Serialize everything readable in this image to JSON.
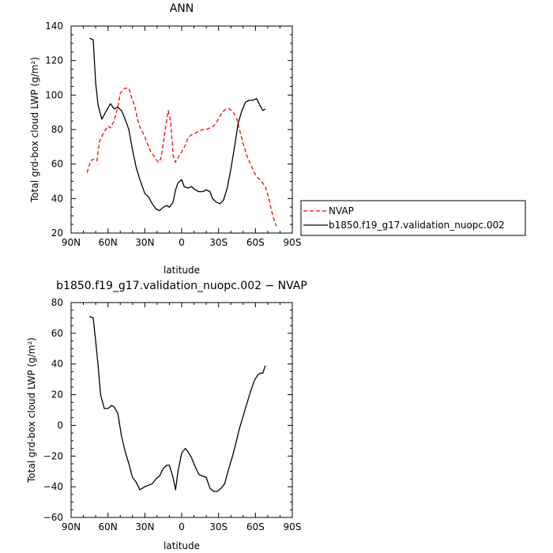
{
  "chart_data": [
    {
      "type": "line",
      "title": "ANN",
      "xlabel": "latitude",
      "ylabel": "Total grd-box cloud LWP (g/m²)",
      "xlim": [
        90,
        -90
      ],
      "ylim": [
        20,
        140
      ],
      "x_ticks": [
        90,
        60,
        30,
        0,
        -30,
        -60,
        -90
      ],
      "x_tick_labels": [
        "90N",
        "60N",
        "30N",
        "0",
        "30S",
        "60S",
        "90S"
      ],
      "y_ticks": [
        20,
        40,
        60,
        80,
        100,
        120,
        140
      ],
      "grid": false,
      "legend": "right-outside",
      "series": [
        {
          "name": "NVAP",
          "color": "#ff0000",
          "dash": true,
          "x": [
            77,
            74,
            71,
            69,
            67,
            65,
            62,
            60,
            58,
            55,
            52,
            50,
            48,
            46,
            43,
            41,
            38,
            35,
            33,
            30,
            28,
            25,
            22,
            19,
            17,
            15,
            13,
            11,
            9,
            7,
            5,
            2,
            0,
            -3,
            -5,
            -8,
            -11,
            -14,
            -17,
            -20,
            -23,
            -26,
            -29,
            -33,
            -36,
            -39,
            -42,
            -45,
            -47,
            -50,
            -53,
            -56,
            -59,
            -62,
            -65,
            -68,
            -71,
            -73,
            -75,
            -77
          ],
          "values": [
            55,
            62,
            63,
            62,
            73,
            76,
            80,
            82,
            81,
            85,
            93,
            101,
            103,
            104,
            104,
            99,
            93,
            83,
            80,
            76,
            72,
            67,
            64,
            61,
            63,
            72,
            82,
            91,
            85,
            65,
            61,
            65,
            67,
            71,
            75,
            77,
            78,
            79,
            80,
            80,
            81,
            82,
            85,
            90,
            92,
            92,
            90,
            86,
            80,
            72,
            65,
            60,
            55,
            52,
            50,
            47,
            40,
            33,
            28,
            24
          ]
        },
        {
          "name": "b1850.f19_g17.validation_nuopc.002",
          "color": "#000000",
          "dash": false,
          "x": [
            75,
            72,
            70,
            68,
            65,
            62,
            58,
            55,
            52,
            49,
            46,
            43,
            40,
            37,
            34,
            30,
            27,
            24,
            21,
            18,
            15,
            12,
            10,
            7,
            5,
            3,
            0,
            -2,
            -5,
            -8,
            -11,
            -14,
            -17,
            -20,
            -23,
            -25,
            -28,
            -31,
            -34,
            -37,
            -40,
            -43,
            -46,
            -49,
            -52,
            -55,
            -58,
            -61,
            -63,
            -66,
            -68
          ],
          "values": [
            133,
            132,
            107,
            94,
            86,
            90,
            95,
            92,
            93,
            91,
            86,
            80,
            68,
            58,
            51,
            43,
            41,
            37,
            34,
            33,
            35,
            36,
            35,
            38,
            45,
            49,
            51,
            47,
            46,
            47,
            45,
            44,
            44,
            45,
            44,
            40,
            38,
            37,
            39,
            46,
            57,
            70,
            84,
            91,
            96,
            97,
            97,
            98,
            95,
            91,
            92
          ]
        }
      ]
    },
    {
      "type": "line",
      "title": "b1850.f19_g17.validation_nuopc.002 − NVAP",
      "xlabel": "latitude",
      "ylabel": "Total grd-box cloud LWP (g/m²)",
      "xlim": [
        90,
        -90
      ],
      "ylim": [
        -60,
        80
      ],
      "x_ticks": [
        90,
        60,
        30,
        0,
        -30,
        -60,
        -90
      ],
      "x_tick_labels": [
        "90N",
        "60N",
        "30N",
        "0",
        "30S",
        "60S",
        "90S"
      ],
      "y_ticks": [
        -60,
        -40,
        -20,
        0,
        20,
        40,
        60,
        80
      ],
      "grid": false,
      "series": [
        {
          "color": "#000000",
          "x": [
            75,
            72,
            70,
            68,
            66,
            63,
            60,
            57,
            55,
            52,
            49,
            46,
            43,
            40,
            37,
            34,
            30,
            27,
            24,
            21,
            18,
            15,
            12,
            10,
            7,
            5,
            3,
            0,
            -3,
            -5,
            -8,
            -11,
            -14,
            -17,
            -20,
            -23,
            -26,
            -29,
            -32,
            -35,
            -38,
            -41,
            -44,
            -47,
            -50,
            -53,
            -56,
            -59,
            -62,
            -64,
            -66,
            -68
          ],
          "values": [
            71,
            70,
            55,
            39,
            20,
            11,
            11,
            13,
            12,
            8,
            -7,
            -17,
            -25,
            -34,
            -37,
            -42,
            -40,
            -39,
            -38,
            -35,
            -33,
            -28,
            -26,
            -26,
            -34,
            -42,
            -30,
            -18,
            -15,
            -17,
            -21,
            -27,
            -32,
            -33,
            -34,
            -41,
            -43,
            -43,
            -41,
            -38,
            -29,
            -21,
            -12,
            -2,
            6,
            14,
            22,
            29,
            33,
            34,
            34,
            39
          ]
        }
      ]
    }
  ]
}
